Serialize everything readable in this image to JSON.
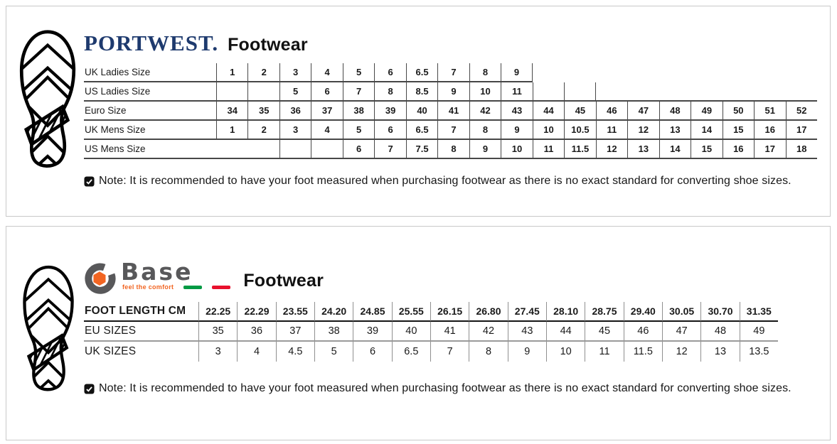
{
  "note": {
    "text": "Note: It is recommended to have your foot measured when purchasing footwear as there is no exact standard for converting shoe sizes."
  },
  "portwest_panel": {
    "brand": "PORTWEST.",
    "brand_color": "#1e3a6e",
    "title": "Footwear",
    "table": {
      "rows": [
        {
          "label": "UK Ladies Size",
          "null_bottom": false,
          "cells": [
            "1",
            "2",
            "3",
            "4",
            "5",
            "6",
            "6.5",
            "7",
            "8",
            "9",
            null,
            null,
            null,
            null,
            null,
            null,
            null,
            null,
            null
          ]
        },
        {
          "label": "US Ladies Size",
          "null_bottom": true,
          "cells": [
            "",
            "",
            "5",
            "6",
            "7",
            "8",
            "8.5",
            "9",
            "10",
            "11",
            "",
            "",
            null,
            null,
            null,
            null,
            null,
            null,
            null
          ]
        },
        {
          "label": "Euro Size",
          "null_bottom": true,
          "cells": [
            "34",
            "35",
            "36",
            "37",
            "38",
            "39",
            "40",
            "41",
            "42",
            "43",
            "44",
            "45",
            "46",
            "47",
            "48",
            "49",
            "50",
            "51",
            "52"
          ]
        },
        {
          "label": "UK Mens Size",
          "null_bottom": true,
          "cells": [
            "1",
            "2",
            "3",
            "4",
            "5",
            "6",
            "6.5",
            "7",
            "8",
            "9",
            "10",
            "10.5",
            "11",
            "12",
            "13",
            "14",
            "15",
            "16",
            "17"
          ]
        },
        {
          "label": "US Mens Size",
          "null_bottom": true,
          "cells": [
            null,
            null,
            "",
            "",
            "6",
            "7",
            "7.5",
            "8",
            "9",
            "10",
            "11",
            "11.5",
            "12",
            "13",
            "14",
            "15",
            "16",
            "17",
            "18"
          ]
        }
      ]
    }
  },
  "base_panel": {
    "brand": "Base",
    "tagline": "feel the comfort",
    "title": "Footwear",
    "brand_gray": "#58585a",
    "brand_orange": "#f26522",
    "flag_green": "#009a44",
    "flag_red": "#e8112d",
    "table": {
      "rows": [
        {
          "label": "FOOT LENGTH CM",
          "cells": [
            "22.25",
            "22.29",
            "23.55",
            "24.20",
            "24.85",
            "25.55",
            "26.15",
            "26.80",
            "27.45",
            "28.10",
            "28.75",
            "29.40",
            "30.05",
            "30.70",
            "31.35"
          ]
        },
        {
          "label": "EU SIZES",
          "cells": [
            "35",
            "36",
            "37",
            "38",
            "39",
            "40",
            "41",
            "42",
            "43",
            "44",
            "45",
            "46",
            "47",
            "48",
            "49"
          ]
        },
        {
          "label": "UK SIZES",
          "cells": [
            "3",
            "4",
            "4.5",
            "5",
            "6",
            "6.5",
            "7",
            "8",
            "9",
            "10",
            "11",
            "11.5",
            "12",
            "13",
            "13.5"
          ]
        }
      ]
    }
  }
}
